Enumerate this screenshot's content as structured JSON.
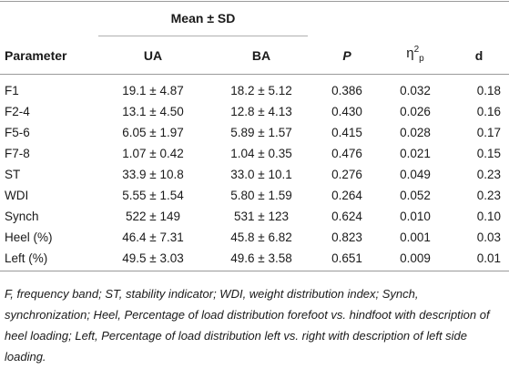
{
  "table": {
    "group_header": "Mean ± SD",
    "columns": {
      "parameter": "Parameter",
      "ua": "UA",
      "ba": "BA",
      "p": "P",
      "eta_main": "η",
      "eta_sup": "2",
      "eta_sub": "p",
      "d": "d"
    },
    "rows": [
      {
        "parameter": "F1",
        "ua": "19.1 ± 4.87",
        "ba": "18.2 ± 5.12",
        "p": "0.386",
        "eta": "0.032",
        "d": "0.18"
      },
      {
        "parameter": "F2-4",
        "ua": "13.1 ± 4.50",
        "ba": "12.8 ± 4.13",
        "p": "0.430",
        "eta": "0.026",
        "d": "0.16"
      },
      {
        "parameter": "F5-6",
        "ua": "6.05 ± 1.97",
        "ba": "5.89 ± 1.57",
        "p": "0.415",
        "eta": "0.028",
        "d": "0.17"
      },
      {
        "parameter": "F7-8",
        "ua": "1.07 ± 0.42",
        "ba": "1.04 ± 0.35",
        "p": "0.476",
        "eta": "0.021",
        "d": "0.15"
      },
      {
        "parameter": "ST",
        "ua": "33.9 ± 10.8",
        "ba": "33.0 ± 10.1",
        "p": "0.276",
        "eta": "0.049",
        "d": "0.23"
      },
      {
        "parameter": "WDI",
        "ua": "5.55 ± 1.54",
        "ba": "5.80 ± 1.59",
        "p": "0.264",
        "eta": "0.052",
        "d": "0.23"
      },
      {
        "parameter": "Synch",
        "ua": "522 ± 149",
        "ba": "531 ± 123",
        "p": "0.624",
        "eta": "0.010",
        "d": "0.10"
      },
      {
        "parameter": "Heel (%)",
        "ua": "46.4 ± 7.31",
        "ba": "45.8 ± 6.82",
        "p": "0.823",
        "eta": "0.001",
        "d": "0.03"
      },
      {
        "parameter": "Left (%)",
        "ua": "49.5 ± 3.03",
        "ba": "49.6 ± 3.58",
        "p": "0.651",
        "eta": "0.009",
        "d": "0.01"
      }
    ],
    "footnote": "F, frequency band; ST, stability indicator; WDI, weight distribution index; Synch, synchronization; Heel, Percentage of load distribution forefoot vs. hindfoot with description of heel loading; Left, Percentage of load distribution left vs. right with description of left side loading."
  }
}
